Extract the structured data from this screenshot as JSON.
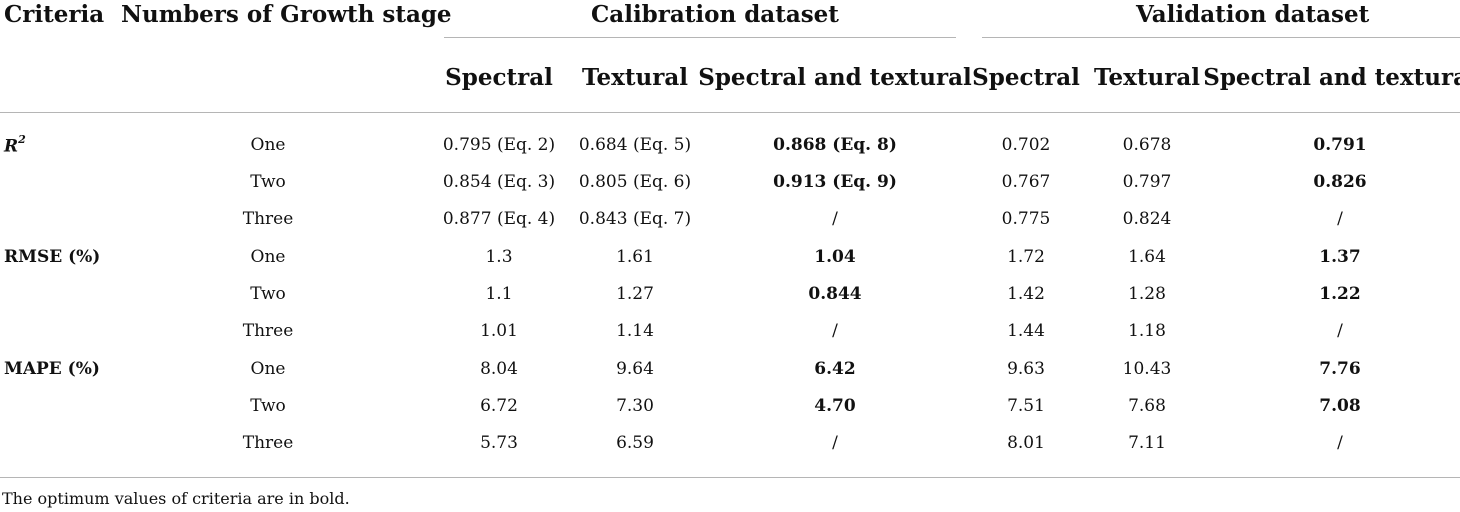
{
  "header": {
    "criteria": "Criteria",
    "growth": "Numbers of Growth stage",
    "calibration": "Calibration dataset",
    "validation": "Validation dataset",
    "sub": [
      "Spectral",
      "Textural",
      "Spectral and textural",
      "Spectral",
      "Textural",
      "Spectral and textural"
    ]
  },
  "criteria_labels": {
    "r2": "R",
    "r2_sup": "2",
    "rmse": "RMSE (%)",
    "mape": "MAPE (%)"
  },
  "rows": [
    {
      "stage": "One",
      "cells": [
        "0.795 (Eq. 2)",
        "0.684 (Eq. 5)",
        "0.868 (Eq. 8)",
        "0.702",
        "0.678",
        "0.791"
      ]
    },
    {
      "stage": "Two",
      "cells": [
        "0.854 (Eq. 3)",
        "0.805 (Eq. 6)",
        "0.913 (Eq. 9)",
        "0.767",
        "0.797",
        "0.826"
      ]
    },
    {
      "stage": "Three",
      "cells": [
        "0.877 (Eq. 4)",
        "0.843 (Eq. 7)",
        "/",
        "0.775",
        "0.824",
        "/"
      ]
    },
    {
      "stage": "One",
      "cells": [
        "1.3",
        "1.61",
        "1.04",
        "1.72",
        "1.64",
        "1.37"
      ]
    },
    {
      "stage": "Two",
      "cells": [
        "1.1",
        "1.27",
        "0.844",
        "1.42",
        "1.28",
        "1.22"
      ]
    },
    {
      "stage": "Three",
      "cells": [
        "1.01",
        "1.14",
        "/",
        "1.44",
        "1.18",
        "/"
      ]
    },
    {
      "stage": "One",
      "cells": [
        "8.04",
        "9.64",
        "6.42",
        "9.63",
        "10.43",
        "7.76"
      ]
    },
    {
      "stage": "Two",
      "cells": [
        "6.72",
        "7.30",
        "4.70",
        "7.51",
        "7.68",
        "7.08"
      ]
    },
    {
      "stage": "Three",
      "cells": [
        "5.73",
        "6.59",
        "/",
        "8.01",
        "7.11",
        "/"
      ]
    }
  ],
  "footnote": "The optimum values of criteria are in bold."
}
